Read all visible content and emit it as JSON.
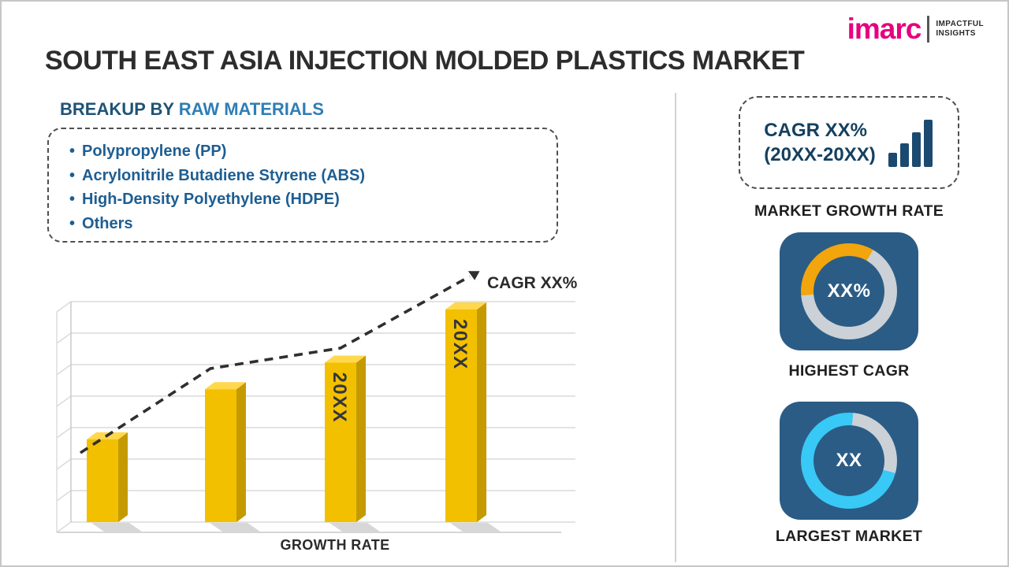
{
  "page": {
    "title": "SOUTH EAST ASIA INJECTION MOLDED PLASTICS MARKET"
  },
  "logo": {
    "brand": "imarc",
    "tagline_line1": "IMPACTFUL",
    "tagline_line2": "INSIGHTS"
  },
  "breakup": {
    "heading_prefix": "BREAKUP BY ",
    "heading_highlight": "RAW MATERIALS",
    "bullet": "•",
    "items": [
      "Polypropylene (PP)",
      "Acrylonitrile Butadiene Styrene (ABS)",
      "High-Density Polyethylene (HDPE)",
      "Others"
    ]
  },
  "chart_data": {
    "type": "bar",
    "title": "",
    "xlabel": "GROWTH RATE",
    "ylabel": "",
    "categories": [
      "",
      "",
      "20XX",
      "20XX"
    ],
    "values": [
      28,
      45,
      54,
      72
    ],
    "bar_labels": [
      "",
      "",
      "20XX",
      "20XX"
    ],
    "ylim": [
      0,
      80
    ],
    "gridlines": 8,
    "legend": "none",
    "annotation": "CAGR XX%",
    "bar_color": "#F3C000",
    "bar_side_color": "#C59A00",
    "bar_top_color": "#FFD84D",
    "trend_color": "#2F2F2F",
    "trend_points": [
      [
        40,
        235
      ],
      [
        205,
        128
      ],
      [
        370,
        102
      ],
      [
        534,
        11
      ]
    ]
  },
  "sidebar": {
    "growth_box": {
      "line1": "CAGR XX%",
      "line2": "(20XX-20XX)"
    },
    "market_growth_label": "MARKET GROWTH RATE",
    "highest_cagr": {
      "value": "XX%",
      "label": "HIGHEST CAGR",
      "arc_color": "#F2A50C",
      "rest_color": "#CBD1D6",
      "arc_from_deg": 265,
      "arc_sweep_deg": 125
    },
    "largest_market": {
      "value": "XX",
      "label": "LARGEST MARKET",
      "arc_color": "#CBD1D6",
      "rest_color": "#38C9F6",
      "arc_from_deg": 5,
      "arc_sweep_deg": 100
    }
  },
  "colors": {
    "accent_pink": "#E6007E",
    "heading_blue_dark": "#1F5376",
    "heading_blue": "#2F7EB5",
    "list_blue": "#1D5E93",
    "card_blue": "#2B5C85",
    "icon_navy": "#1B4A70",
    "bar_gold": "#F3C000",
    "donut_gold": "#F2A50C",
    "donut_cyan": "#38C9F6",
    "donut_gray": "#CBD1D6"
  }
}
